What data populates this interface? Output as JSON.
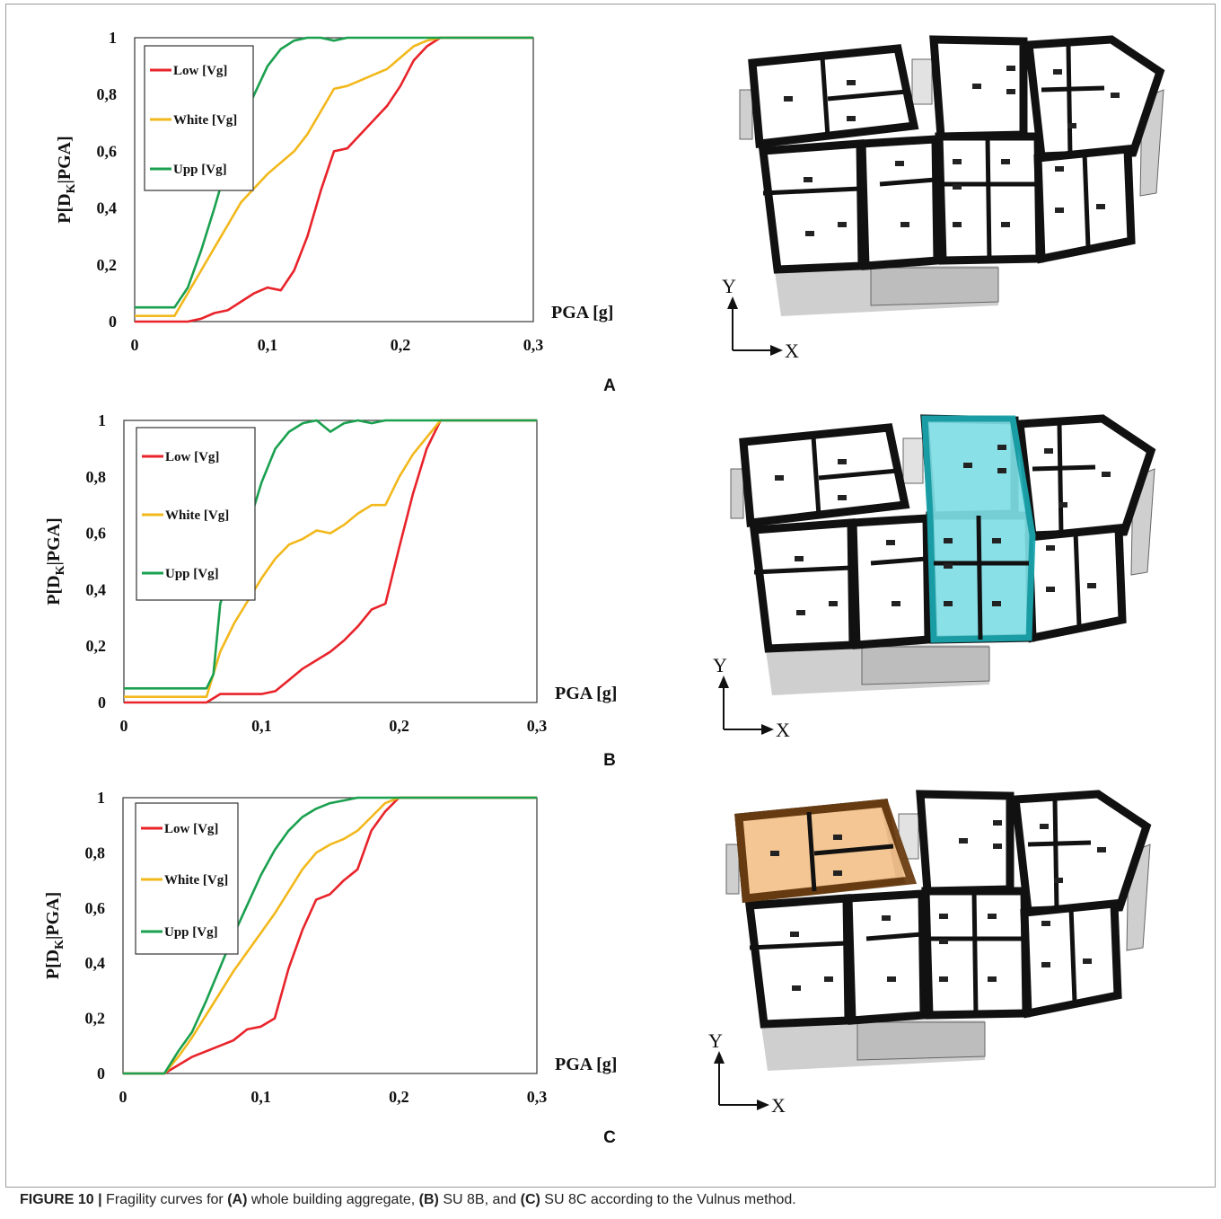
{
  "caption": {
    "label": "FIGURE 10 |",
    "t1": " Fragility curves for ",
    "a": "(A)",
    "t2": " whole building aggregate, ",
    "b": "(B)",
    "t3": " SU 8B, and ",
    "c": "(C)",
    "t4": " SU 8C according to the Vulnus method."
  },
  "colors": {
    "low": "#e8232a",
    "white": "#f2b81c",
    "upp": "#1aa04f",
    "highlight_b": "#7fdfe6",
    "highlight_b_edge": "#1aa8b0",
    "highlight_c": "#f4c38e",
    "highlight_c_edge": "#6b3e12"
  },
  "plans": {
    "axis_y": "Y",
    "axis_x": "X",
    "highlights": [
      "",
      "SU 8B",
      "SU 8C"
    ]
  },
  "chart_data": [
    {
      "panel": "A",
      "type": "line",
      "xlabel": "PGA [g]",
      "ylabel": "P[D_K|PGA]",
      "xlim": [
        0,
        0.3
      ],
      "ylim": [
        0,
        1
      ],
      "xticks": [
        "0",
        "0,1",
        "0,2",
        "0,3"
      ],
      "yticks": [
        "0",
        "0,2",
        "0,4",
        "0,6",
        "0,8",
        "1"
      ],
      "legend_position": "top-left",
      "series": [
        {
          "name": "Low [Vg]",
          "color": "low",
          "x": [
            0,
            0.04,
            0.05,
            0.06,
            0.07,
            0.08,
            0.09,
            0.1,
            0.11,
            0.12,
            0.13,
            0.14,
            0.15,
            0.16,
            0.17,
            0.18,
            0.19,
            0.2,
            0.21,
            0.22,
            0.23,
            0.3
          ],
          "y": [
            0,
            0,
            0.01,
            0.03,
            0.04,
            0.07,
            0.1,
            0.12,
            0.11,
            0.18,
            0.3,
            0.46,
            0.6,
            0.61,
            0.66,
            0.71,
            0.76,
            0.83,
            0.92,
            0.97,
            1,
            1
          ]
        },
        {
          "name": "White [Vg]",
          "color": "white",
          "x": [
            0,
            0.03,
            0.04,
            0.05,
            0.06,
            0.07,
            0.08,
            0.09,
            0.1,
            0.11,
            0.12,
            0.13,
            0.14,
            0.15,
            0.16,
            0.17,
            0.18,
            0.19,
            0.2,
            0.21,
            0.22,
            0.23,
            0.3
          ],
          "y": [
            0.02,
            0.02,
            0.1,
            0.18,
            0.26,
            0.34,
            0.42,
            0.47,
            0.52,
            0.56,
            0.6,
            0.66,
            0.74,
            0.82,
            0.83,
            0.85,
            0.87,
            0.89,
            0.93,
            0.97,
            0.99,
            1,
            1
          ]
        },
        {
          "name": "Upp [Vg]",
          "color": "upp",
          "x": [
            0,
            0.03,
            0.04,
            0.05,
            0.06,
            0.07,
            0.08,
            0.09,
            0.1,
            0.11,
            0.12,
            0.13,
            0.14,
            0.15,
            0.16,
            0.17,
            0.18,
            0.3
          ],
          "y": [
            0.05,
            0.05,
            0.12,
            0.25,
            0.4,
            0.56,
            0.7,
            0.8,
            0.9,
            0.96,
            0.99,
            1,
            1,
            0.99,
            1,
            1,
            1,
            1
          ]
        }
      ]
    },
    {
      "panel": "B",
      "type": "line",
      "xlabel": "PGA [g]",
      "ylabel": "P[D_K|PGA]",
      "xlim": [
        0,
        0.3
      ],
      "ylim": [
        0,
        1
      ],
      "xticks": [
        "0",
        "0,1",
        "0,2",
        "0,3"
      ],
      "yticks": [
        "0",
        "0,2",
        "0,4",
        "0,6",
        "0,8",
        "1"
      ],
      "legend_position": "top-left",
      "series": [
        {
          "name": "Low [Vg]",
          "color": "low",
          "x": [
            0,
            0.06,
            0.07,
            0.08,
            0.09,
            0.1,
            0.11,
            0.12,
            0.13,
            0.14,
            0.15,
            0.16,
            0.17,
            0.18,
            0.19,
            0.2,
            0.21,
            0.22,
            0.23,
            0.3
          ],
          "y": [
            0,
            0,
            0.03,
            0.03,
            0.03,
            0.03,
            0.04,
            0.08,
            0.12,
            0.15,
            0.18,
            0.22,
            0.27,
            0.33,
            0.35,
            0.55,
            0.74,
            0.9,
            1,
            1
          ]
        },
        {
          "name": "White [Vg]",
          "color": "white",
          "x": [
            0,
            0.06,
            0.07,
            0.08,
            0.09,
            0.1,
            0.11,
            0.12,
            0.13,
            0.14,
            0.15,
            0.16,
            0.17,
            0.18,
            0.19,
            0.2,
            0.21,
            0.22,
            0.23,
            0.3
          ],
          "y": [
            0.02,
            0.02,
            0.18,
            0.28,
            0.36,
            0.44,
            0.51,
            0.56,
            0.58,
            0.61,
            0.6,
            0.63,
            0.67,
            0.7,
            0.7,
            0.8,
            0.88,
            0.94,
            1,
            1
          ]
        },
        {
          "name": "Upp [Vg]",
          "color": "upp",
          "x": [
            0,
            0.06,
            0.065,
            0.07,
            0.08,
            0.09,
            0.1,
            0.11,
            0.12,
            0.13,
            0.14,
            0.15,
            0.16,
            0.17,
            0.18,
            0.19,
            0.2,
            0.3
          ],
          "y": [
            0.05,
            0.05,
            0.1,
            0.35,
            0.5,
            0.62,
            0.78,
            0.9,
            0.96,
            0.99,
            1,
            0.96,
            0.99,
            1,
            0.99,
            1,
            1,
            1
          ]
        }
      ]
    },
    {
      "panel": "C",
      "type": "line",
      "xlabel": "PGA [g]",
      "ylabel": "P[D_K|PGA]",
      "xlim": [
        0,
        0.3
      ],
      "ylim": [
        0,
        1
      ],
      "xticks": [
        "0",
        "0,1",
        "0,2",
        "0,3"
      ],
      "yticks": [
        "0",
        "0,2",
        "0,4",
        "0,6",
        "0,8",
        "1"
      ],
      "legend_position": "top-left",
      "series": [
        {
          "name": "Low [Vg]",
          "color": "low",
          "x": [
            0,
            0.03,
            0.04,
            0.05,
            0.06,
            0.07,
            0.08,
            0.09,
            0.1,
            0.11,
            0.12,
            0.13,
            0.14,
            0.15,
            0.16,
            0.17,
            0.18,
            0.19,
            0.2,
            0.3
          ],
          "y": [
            0,
            0,
            0.03,
            0.06,
            0.08,
            0.1,
            0.12,
            0.16,
            0.17,
            0.2,
            0.38,
            0.52,
            0.63,
            0.65,
            0.7,
            0.74,
            0.88,
            0.95,
            1,
            1
          ]
        },
        {
          "name": "White [Vg]",
          "color": "white",
          "x": [
            0,
            0.03,
            0.04,
            0.05,
            0.06,
            0.07,
            0.08,
            0.09,
            0.1,
            0.11,
            0.12,
            0.13,
            0.14,
            0.15,
            0.16,
            0.17,
            0.18,
            0.19,
            0.2,
            0.3
          ],
          "y": [
            0,
            0,
            0.06,
            0.13,
            0.21,
            0.29,
            0.37,
            0.44,
            0.51,
            0.58,
            0.66,
            0.74,
            0.8,
            0.83,
            0.85,
            0.88,
            0.93,
            0.98,
            1,
            1
          ]
        },
        {
          "name": "Upp [Vg]",
          "color": "upp",
          "x": [
            0,
            0.03,
            0.04,
            0.05,
            0.06,
            0.07,
            0.08,
            0.09,
            0.1,
            0.11,
            0.12,
            0.13,
            0.14,
            0.15,
            0.16,
            0.17,
            0.3
          ],
          "y": [
            0,
            0,
            0.08,
            0.15,
            0.26,
            0.38,
            0.5,
            0.61,
            0.72,
            0.81,
            0.88,
            0.93,
            0.96,
            0.98,
            0.99,
            1,
            1
          ]
        }
      ]
    }
  ],
  "panel_labels": [
    "A",
    "B",
    "C"
  ]
}
